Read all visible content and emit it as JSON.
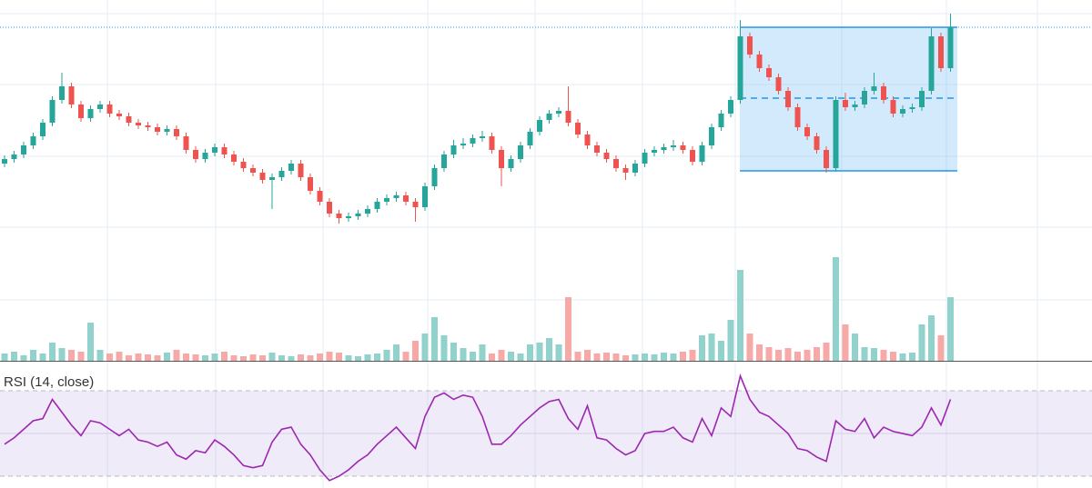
{
  "chart_data": {
    "type": "candlestick",
    "open": [
      80,
      85,
      90,
      100,
      110,
      125,
      150,
      165,
      145,
      130,
      140,
      145,
      135,
      132,
      125,
      122,
      120,
      115,
      118,
      110,
      95,
      85,
      92,
      98,
      90,
      82,
      75,
      70,
      62,
      65,
      72,
      80,
      65,
      50,
      38,
      25,
      20,
      22,
      25,
      30,
      38,
      42,
      45,
      38,
      32,
      55,
      75,
      90,
      100,
      102,
      108,
      110,
      95,
      75,
      85,
      100,
      115,
      128,
      135,
      138,
      125,
      112,
      100,
      92,
      85,
      75,
      70,
      80,
      92,
      95,
      98,
      100,
      95,
      82,
      100,
      120,
      135,
      150,
      220,
      200,
      185,
      175,
      160,
      142,
      120,
      110,
      95,
      75,
      150,
      142,
      145,
      160,
      165,
      150,
      135,
      140,
      142,
      160,
      220,
      185
    ],
    "high": [
      89,
      94,
      104,
      114,
      129,
      154,
      180,
      169,
      149,
      144,
      149,
      149,
      139,
      136,
      129,
      126,
      124,
      122,
      122,
      114,
      99,
      96,
      102,
      102,
      94,
      86,
      79,
      74,
      69,
      76,
      84,
      84,
      69,
      54,
      42,
      29,
      26,
      29,
      34,
      42,
      46,
      49,
      49,
      42,
      59,
      79,
      94,
      106,
      108,
      112,
      116,
      114,
      99,
      89,
      104,
      119,
      132,
      139,
      142,
      165,
      129,
      116,
      104,
      96,
      89,
      79,
      84,
      96,
      99,
      102,
      106,
      104,
      99,
      104,
      124,
      139,
      154,
      238,
      224,
      204,
      189,
      179,
      164,
      146,
      124,
      114,
      99,
      154,
      158,
      149,
      164,
      180,
      169,
      154,
      144,
      146,
      164,
      229,
      224,
      245
    ],
    "low": [
      76,
      81,
      86,
      96,
      106,
      121,
      146,
      141,
      126,
      126,
      136,
      131,
      128,
      121,
      118,
      116,
      111,
      111,
      106,
      91,
      81,
      81,
      88,
      86,
      78,
      71,
      66,
      58,
      30,
      61,
      68,
      61,
      46,
      34,
      21,
      14,
      16,
      18,
      21,
      26,
      34,
      38,
      34,
      16,
      28,
      51,
      71,
      86,
      96,
      98,
      104,
      91,
      55,
      71,
      81,
      96,
      111,
      124,
      131,
      121,
      108,
      96,
      88,
      81,
      71,
      62,
      66,
      76,
      88,
      91,
      94,
      91,
      78,
      78,
      96,
      116,
      131,
      146,
      196,
      181,
      171,
      156,
      138,
      116,
      106,
      91,
      70,
      71,
      138,
      138,
      141,
      156,
      146,
      131,
      131,
      136,
      138,
      156,
      181,
      181
    ],
    "close": [
      85,
      90,
      100,
      110,
      125,
      150,
      165,
      145,
      130,
      140,
      145,
      135,
      132,
      125,
      122,
      120,
      115,
      118,
      110,
      95,
      85,
      92,
      98,
      90,
      82,
      75,
      70,
      62,
      65,
      72,
      80,
      65,
      50,
      38,
      25,
      20,
      22,
      25,
      30,
      38,
      42,
      45,
      38,
      32,
      55,
      75,
      90,
      100,
      102,
      108,
      110,
      95,
      75,
      85,
      100,
      115,
      128,
      135,
      138,
      125,
      112,
      100,
      92,
      85,
      75,
      70,
      80,
      92,
      95,
      98,
      100,
      95,
      82,
      100,
      120,
      135,
      150,
      220,
      200,
      185,
      175,
      160,
      142,
      120,
      110,
      95,
      75,
      150,
      142,
      145,
      160,
      165,
      150,
      135,
      140,
      142,
      160,
      220,
      185,
      230
    ],
    "volume": [
      8,
      10,
      6,
      12,
      8,
      20,
      14,
      12,
      10,
      42,
      12,
      8,
      10,
      6,
      8,
      7,
      6,
      9,
      12,
      8,
      7,
      6,
      8,
      10,
      6,
      5,
      7,
      6,
      9,
      6,
      5,
      7,
      6,
      8,
      10,
      9,
      6,
      5,
      7,
      8,
      12,
      18,
      10,
      22,
      30,
      48,
      28,
      20,
      14,
      10,
      18,
      8,
      12,
      10,
      8,
      18,
      20,
      25,
      18,
      70,
      10,
      12,
      8,
      9,
      8,
      6,
      7,
      8,
      7,
      9,
      8,
      10,
      12,
      28,
      30,
      22,
      45,
      100,
      30,
      18,
      15,
      12,
      14,
      10,
      12,
      15,
      20,
      114,
      40,
      30,
      15,
      14,
      12,
      10,
      8,
      9,
      40,
      50,
      28,
      70
    ],
    "rsi": [
      45,
      48,
      52,
      56,
      57,
      66,
      60,
      54,
      49,
      56,
      55,
      52,
      49,
      52,
      47,
      46,
      44,
      46,
      40,
      38,
      42,
      41,
      47,
      44,
      40,
      35,
      34,
      35,
      46,
      52,
      53,
      45,
      40,
      33,
      28,
      30,
      33,
      37,
      40,
      45,
      49,
      53,
      48,
      43,
      58,
      67,
      69,
      66,
      68,
      67,
      58,
      45,
      45,
      49,
      54,
      58,
      62,
      65,
      66,
      57,
      52,
      63,
      48,
      47,
      43,
      40,
      42,
      50,
      51,
      51,
      53,
      48,
      46,
      57,
      49,
      62,
      58,
      77,
      66,
      60,
      58,
      54,
      50,
      43,
      42,
      39,
      37,
      56,
      52,
      51,
      57,
      48,
      53,
      51,
      50,
      49,
      53,
      62,
      54,
      66
    ],
    "rsi_label": "RSI (14, close)",
    "ylim": [
      0,
      260
    ],
    "volume_ylim": [
      0,
      120
    ],
    "rsi_ylim": [
      24.5,
      79.4
    ],
    "up_color": "#26a69a",
    "down_color": "#ef5350",
    "volume_up_color": "#92d2cc",
    "volume_down_color": "#f7a9a7",
    "rsi_color": "#9c27b0",
    "grid": true
  }
}
